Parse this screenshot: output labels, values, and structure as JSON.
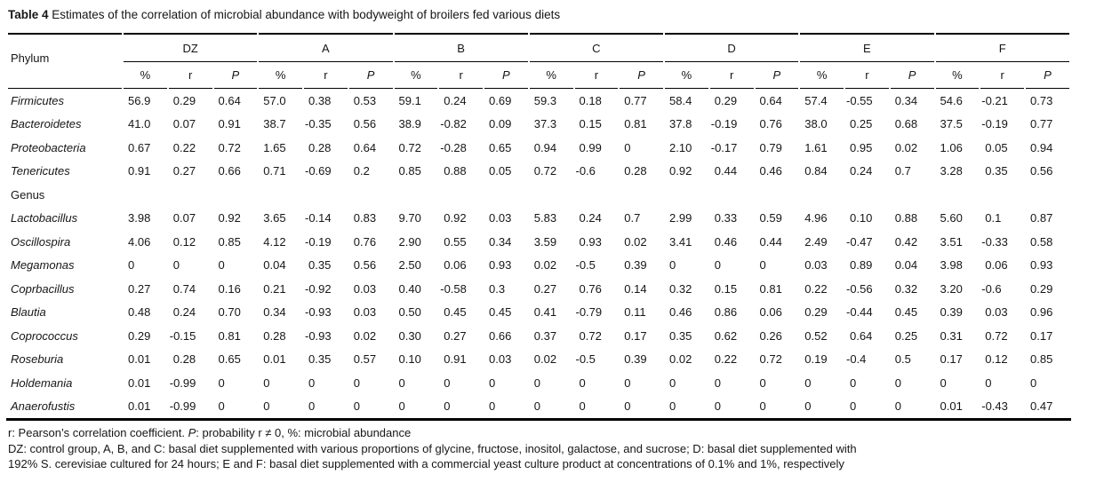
{
  "colors": {
    "background": "#ffffff",
    "text": "#161616",
    "rule": "#000000"
  },
  "title": {
    "label": "Table 4",
    "text": " Estimates of the correlation of microbial abundance with bodyweight of broilers fed various diets"
  },
  "table": {
    "row_header": "Phylum",
    "groups": [
      "DZ",
      "A",
      "B",
      "C",
      "D",
      "E",
      "F"
    ],
    "subheaders": [
      {
        "label": "%",
        "italic": false
      },
      {
        "label": "r",
        "italic": false
      },
      {
        "label": "P",
        "italic": true
      }
    ],
    "sections": [
      {
        "label": "",
        "rows": [
          {
            "name": "Firmicutes",
            "values": [
              "56.9",
              "0.29",
              "0.64",
              "57.0",
              "0.38",
              "0.53",
              "59.1",
              "0.24",
              "0.69",
              "59.3",
              "0.18",
              "0.77",
              "58.4",
              "0.29",
              "0.64",
              "57.4",
              "-0.55",
              "0.34",
              "54.6",
              "-0.21",
              "0.73"
            ]
          },
          {
            "name": "Bacteroidetes",
            "values": [
              "41.0",
              "0.07",
              "0.91",
              "38.7",
              "-0.35",
              "0.56",
              "38.9",
              "-0.82",
              "0.09",
              "37.3",
              "0.15",
              "0.81",
              "37.8",
              "-0.19",
              "0.76",
              "38.0",
              "0.25",
              "0.68",
              "37.5",
              "-0.19",
              "0.77"
            ]
          },
          {
            "name": "Proteobacteria",
            "values": [
              "0.67",
              "0.22",
              "0.72",
              "1.65",
              "0.28",
              "0.64",
              "0.72",
              "-0.28",
              "0.65",
              "0.94",
              "0.99",
              "0",
              "2.10",
              "-0.17",
              "0.79",
              "1.61",
              "0.95",
              "0.02",
              "1.06",
              "0.05",
              "0.94"
            ]
          },
          {
            "name": "Tenericutes",
            "values": [
              "0.91",
              "0.27",
              "0.66",
              "0.71",
              "-0.69",
              "0.2",
              "0.85",
              "0.88",
              "0.05",
              "0.72",
              "-0.6",
              "0.28",
              "0.92",
              "0.44",
              "0.46",
              "0.84",
              "0.24",
              "0.7",
              "3.28",
              "0.35",
              "0.56"
            ]
          }
        ]
      },
      {
        "label": "Genus",
        "rows": [
          {
            "name": "Lactobacillus",
            "values": [
              "3.98",
              "0.07",
              "0.92",
              "3.65",
              "-0.14",
              "0.83",
              "9.70",
              "0.92",
              "0.03",
              "5.83",
              "0.24",
              "0.7",
              "2.99",
              "0.33",
              "0.59",
              "4.96",
              "0.10",
              "0.88",
              "5.60",
              "0.1",
              "0.87"
            ]
          },
          {
            "name": "Oscillospira",
            "values": [
              "4.06",
              "0.12",
              "0.85",
              "4.12",
              "-0.19",
              "0.76",
              "2.90",
              "0.55",
              "0.34",
              "3.59",
              "0.93",
              "0.02",
              "3.41",
              "0.46",
              "0.44",
              "2.49",
              "-0.47",
              "0.42",
              "3.51",
              "-0.33",
              "0.58"
            ]
          },
          {
            "name": "Megamonas",
            "values": [
              "0",
              "0",
              "0",
              "0.04",
              "0.35",
              "0.56",
              "2.50",
              "0.06",
              "0.93",
              "0.02",
              "-0.5",
              "0.39",
              "0",
              "0",
              "0",
              "0.03",
              "0.89",
              "0.04",
              "3.98",
              "0.06",
              "0.93"
            ]
          },
          {
            "name": "Coprbacillus",
            "values": [
              "0.27",
              "0.74",
              "0.16",
              "0.21",
              "-0.92",
              "0.03",
              "0.40",
              "-0.58",
              "0.3",
              "0.27",
              "0.76",
              "0.14",
              "0.32",
              "0.15",
              "0.81",
              "0.22",
              "-0.56",
              "0.32",
              "3.20",
              "-0.6",
              "0.29"
            ]
          },
          {
            "name": "Blautia",
            "values": [
              "0.48",
              "0.24",
              "0.70",
              "0.34",
              "-0.93",
              "0.03",
              "0.50",
              "0.45",
              "0.45",
              "0.41",
              "-0.79",
              "0.11",
              "0.46",
              "0.86",
              "0.06",
              "0.29",
              "-0.44",
              "0.45",
              "0.39",
              "0.03",
              "0.96"
            ]
          },
          {
            "name": "Coprococcus",
            "values": [
              "0.29",
              "-0.15",
              "0.81",
              "0.28",
              "-0.93",
              "0.02",
              "0.30",
              "0.27",
              "0.66",
              "0.37",
              "0.72",
              "0.17",
              "0.35",
              "0.62",
              "0.26",
              "0.52",
              "0.64",
              "0.25",
              "0.31",
              "0.72",
              "0.17"
            ]
          },
          {
            "name": "Roseburia",
            "values": [
              "0.01",
              "0.28",
              "0.65",
              "0.01",
              "0.35",
              "0.57",
              "0.10",
              "0.91",
              "0.03",
              "0.02",
              "-0.5",
              "0.39",
              "0.02",
              "0.22",
              "0.72",
              "0.19",
              "-0.4",
              "0.5",
              "0.17",
              "0.12",
              "0.85"
            ]
          },
          {
            "name": "Holdemania",
            "values": [
              "0.01",
              "-0.99",
              "0",
              "0",
              "0",
              "0",
              "0",
              "0",
              "0",
              "0",
              "0",
              "0",
              "0",
              "0",
              "0",
              "0",
              "0",
              "0",
              "0",
              "0",
              "0"
            ]
          },
          {
            "name": "Anaerofustis",
            "values": [
              "0.01",
              "-0.99",
              "0",
              "0",
              "0",
              "0",
              "0",
              "0",
              "0",
              "0",
              "0",
              "0",
              "0",
              "0",
              "0",
              "0",
              "0",
              "0",
              "0.01",
              "-0.43",
              "0.47"
            ]
          }
        ]
      }
    ]
  },
  "footnotes": [
    {
      "segments": [
        {
          "text": "r: Pearson’s correlation coefficient. ",
          "italic": false
        },
        {
          "text": "P",
          "italic": true
        },
        {
          "text": ": probability r ≠ 0, %: microbial abundance",
          "italic": false
        }
      ]
    },
    {
      "segments": [
        {
          "text": "DZ: control group, A, B, and C: basal diet supplemented with various proportions of glycine, fructose, inositol, galactose, and sucrose; D: basal diet supplemented with",
          "italic": false
        }
      ]
    },
    {
      "segments": [
        {
          "text": "192% S. cerevisiae cultured for 24 hours; E and F: basal diet supplemented with a commercial yeast culture product at concentrations of 0.1% and 1%, respectively",
          "italic": false
        }
      ]
    }
  ]
}
